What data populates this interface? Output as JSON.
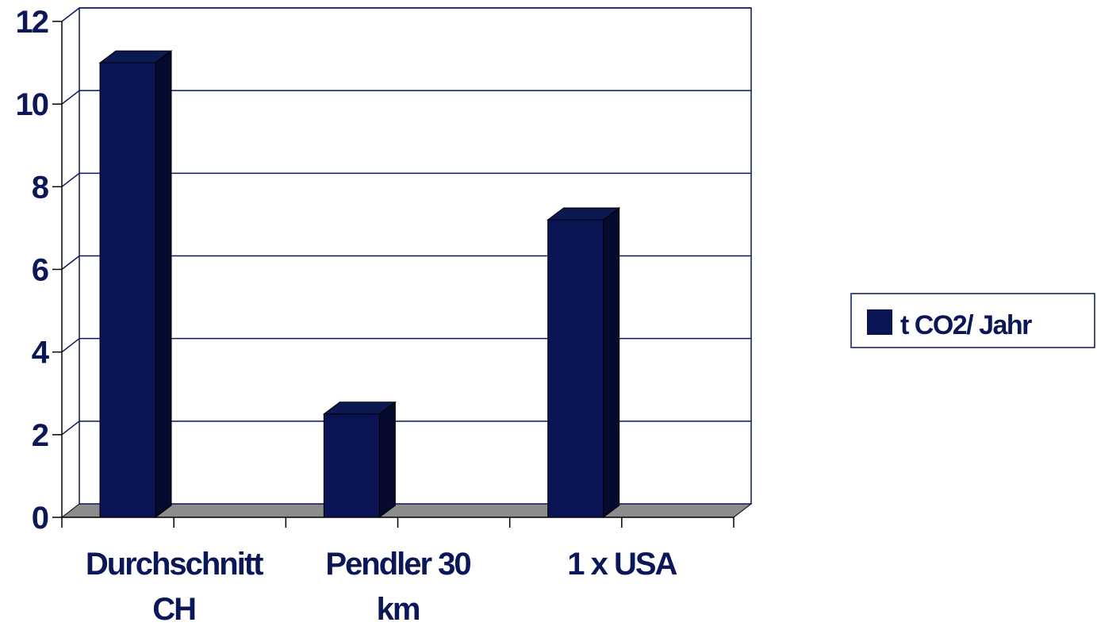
{
  "chart_data": {
    "type": "bar",
    "categories": [
      "Durchschnitt CH",
      "Pendler 30 km",
      "1 x USA"
    ],
    "category_label_lines": [
      [
        "Durchschnitt",
        "CH"
      ],
      [
        "Pendler 30",
        "km"
      ],
      [
        "1 x USA"
      ]
    ],
    "series": [
      {
        "name": "t CO2/ Jahr",
        "values": [
          11,
          2.5,
          7.2
        ]
      }
    ],
    "ylim": [
      0,
      12
    ],
    "yticks": [
      0,
      2,
      4,
      6,
      8,
      10,
      12
    ],
    "grid": true,
    "legend_position": "right",
    "style": "3d",
    "colors": {
      "bar_front": "#0a1455",
      "bar_top": "#0c1850",
      "bar_side": "#050a2e",
      "floor": "#8c8c8c",
      "grid": "#0b1757",
      "text": "#0b1757"
    }
  }
}
